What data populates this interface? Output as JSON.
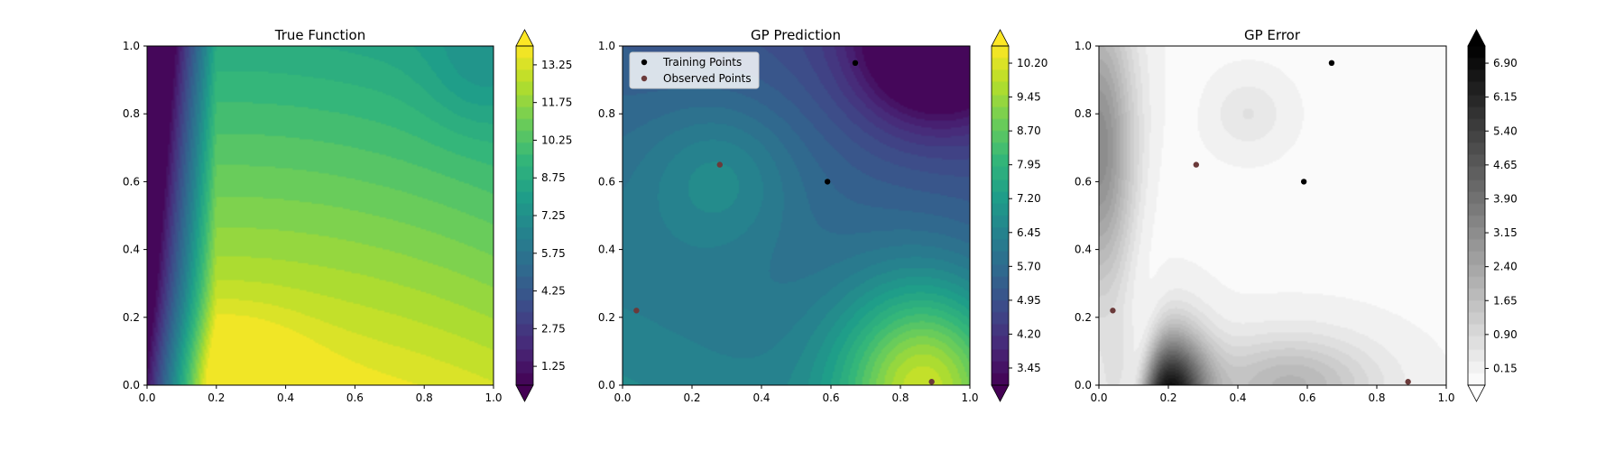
{
  "figure": {
    "background": "#ffffff"
  },
  "chart_data": [
    {
      "type": "heatmap",
      "title": "True Function",
      "xlim": [
        0,
        1
      ],
      "ylim": [
        0,
        1
      ],
      "xticks": [
        "0.0",
        "0.2",
        "0.4",
        "0.6",
        "0.8",
        "1.0"
      ],
      "yticks": [
        "0.0",
        "0.2",
        "0.4",
        "0.6",
        "0.8",
        "1.0"
      ],
      "colormap": "viridis",
      "colorbar": {
        "ticks": [
          "1.25",
          "2.75",
          "4.25",
          "5.75",
          "7.25",
          "8.75",
          "10.25",
          "11.75",
          "13.25"
        ],
        "vmin": 0.5,
        "vmax": 14.0,
        "extend": "both"
      },
      "field": {
        "kind": "true_function"
      },
      "series": []
    },
    {
      "type": "heatmap",
      "title": "GP Prediction",
      "xlim": [
        0,
        1
      ],
      "ylim": [
        0,
        1
      ],
      "xticks": [
        "0.0",
        "0.2",
        "0.4",
        "0.6",
        "0.8",
        "1.0"
      ],
      "yticks": [
        "0.0",
        "0.2",
        "0.4",
        "0.6",
        "0.8",
        "1.0"
      ],
      "colormap": "viridis",
      "colorbar": {
        "ticks": [
          "3.45",
          "4.20",
          "4.95",
          "5.70",
          "6.45",
          "7.20",
          "7.95",
          "8.70",
          "9.45",
          "10.20"
        ],
        "vmin": 3.07,
        "vmax": 10.58,
        "extend": "both"
      },
      "field": {
        "kind": "gp_prediction"
      },
      "legend": {
        "location": "upper-left",
        "entries": [
          "Training Points",
          "Observed Points"
        ]
      },
      "series": [
        {
          "name": "Training Points",
          "color": "#000000",
          "points": [
            [
              0.67,
              0.95
            ],
            [
              0.59,
              0.6
            ]
          ]
        },
        {
          "name": "Observed Points",
          "color": "#6b3a3a",
          "points": [
            [
              0.28,
              0.65
            ],
            [
              0.04,
              0.22
            ],
            [
              0.89,
              0.01
            ]
          ]
        }
      ]
    },
    {
      "type": "heatmap",
      "title": "GP Error",
      "xlim": [
        0,
        1
      ],
      "ylim": [
        0,
        1
      ],
      "xticks": [
        "0.0",
        "0.2",
        "0.4",
        "0.6",
        "0.8",
        "1.0"
      ],
      "yticks": [
        "0.0",
        "0.2",
        "0.4",
        "0.6",
        "0.8",
        "1.0"
      ],
      "colormap": "greys",
      "colorbar": {
        "ticks": [
          "0.15",
          "0.90",
          "1.65",
          "2.40",
          "3.15",
          "3.90",
          "4.65",
          "5.40",
          "6.15",
          "6.90"
        ],
        "vmin": -0.22,
        "vmax": 7.28,
        "extend": "both"
      },
      "field": {
        "kind": "gp_error"
      },
      "series": [
        {
          "name": "Training Points",
          "color": "#000000",
          "points": [
            [
              0.67,
              0.95
            ],
            [
              0.59,
              0.6
            ]
          ]
        },
        {
          "name": "Observed Points",
          "color": "#6b3a3a",
          "points": [
            [
              0.28,
              0.65
            ],
            [
              0.04,
              0.22
            ],
            [
              0.89,
              0.01
            ]
          ]
        }
      ]
    }
  ]
}
